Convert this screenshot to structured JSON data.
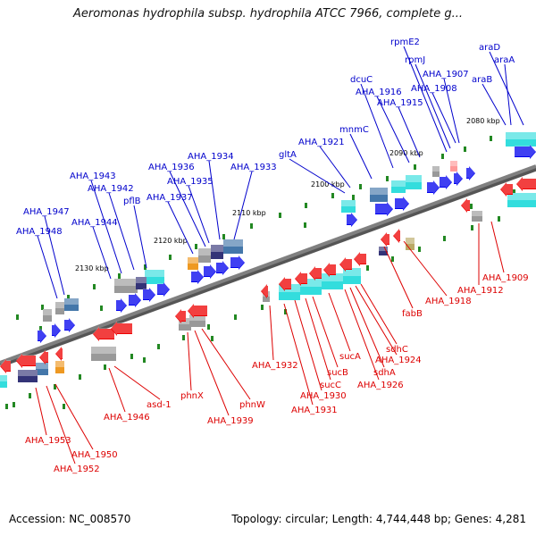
{
  "title": "Aeromonas hydrophila subsp. hydrophila ATCC 7966, complete g...",
  "footer": {
    "accession": "Accession: NC_008570",
    "summary": "Topology: circular; Length: 4,744,448 bp; Genes: 4,281"
  },
  "colors": {
    "forward_label": "#0000cc",
    "reverse_label": "#dd0000",
    "backbone": "#808080",
    "forward_gene": "#0000ee",
    "reverse_gene": "#ee0000",
    "tick": "#228822",
    "cog_cyan": "#33dddd",
    "cog_blue": "#4477aa",
    "cog_dark": "#333377",
    "cog_gray": "#999999",
    "cog_orange": "#ee9922"
  },
  "tick_labels": [
    "2080 kbp",
    "2090 kbp",
    "2100 kbp",
    "2110 kbp",
    "2120 kbp",
    "2130 kbp"
  ],
  "forward_genes": [
    "araA",
    "araD",
    "araB",
    "AHA_1907",
    "rpmJ",
    "rpmE2",
    "AHA_1908",
    "AHA_1915",
    "AHA_1916",
    "dcuC",
    "mnmC",
    "AHA_1921",
    "gltA",
    "AHA_1933",
    "AHA_1934",
    "AHA_1935",
    "AHA_1936",
    "AHA_1937",
    "pflB",
    "AHA_1942",
    "AHA_1943",
    "AHA_1944",
    "AHA_1947",
    "AHA_1948"
  ],
  "reverse_genes": [
    "AHA_1909",
    "AHA_1912",
    "AHA_1918",
    "fabB",
    "sdhC",
    "AHA_1924",
    "sdhA",
    "AHA_1926",
    "sucA",
    "sucB",
    "sucC",
    "AHA_1930",
    "AHA_1931",
    "AHA_1932",
    "phnW",
    "AHA_1939",
    "phnX",
    "asd-1",
    "AHA_1946",
    "AHA_1950",
    "AHA_1952",
    "AHA_1953"
  ]
}
